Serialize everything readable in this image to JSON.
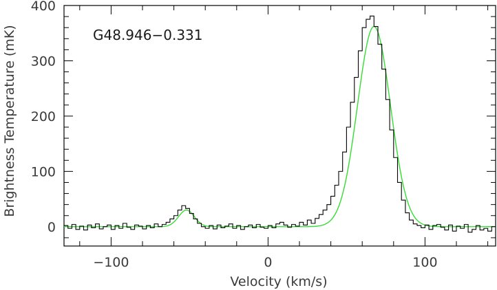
{
  "chart_data": {
    "type": "line",
    "title": "",
    "annotation": "G48.946−0.331",
    "xlabel": "Velocity (km/s)",
    "ylabel": "Brightness Temperature (mK)",
    "xlim": [
      -130,
      145
    ],
    "ylim": [
      -35,
      400
    ],
    "xticks": [
      -100,
      0,
      100
    ],
    "xtick_labels": [
      "−100",
      "0",
      "100"
    ],
    "yticks": [
      0,
      100,
      200,
      300,
      400
    ],
    "ytick_labels": [
      "0",
      "100",
      "200",
      "300",
      "400"
    ],
    "grid": false,
    "legend": "none",
    "series": [
      {
        "role": "observed spectrum",
        "style": "step",
        "color": "#000000",
        "x": [
          -130,
          -127.5,
          -125,
          -122.5,
          -120,
          -117.5,
          -115,
          -112.5,
          -110,
          -107.5,
          -105,
          -102.5,
          -100,
          -97.5,
          -95,
          -92.5,
          -90,
          -87.5,
          -85,
          -82.5,
          -80,
          -77.5,
          -75,
          -72.5,
          -70,
          -67.5,
          -65,
          -62.5,
          -60,
          -57.5,
          -55,
          -52.5,
          -50,
          -47.5,
          -45,
          -42.5,
          -40,
          -37.5,
          -35,
          -32.5,
          -30,
          -27.5,
          -25,
          -22.5,
          -20,
          -17.5,
          -15,
          -12.5,
          -10,
          -7.5,
          -5,
          -2.5,
          0,
          2.5,
          5,
          7.5,
          10,
          12.5,
          15,
          17.5,
          20,
          22.5,
          25,
          27.5,
          30,
          32.5,
          35,
          37.5,
          40,
          42.5,
          45,
          47.5,
          50,
          52.5,
          55,
          57.5,
          60,
          62.5,
          65,
          67.5,
          70,
          72.5,
          75,
          77.5,
          80,
          82.5,
          85,
          87.5,
          90,
          92.5,
          95,
          97.5,
          100,
          102.5,
          105,
          107.5,
          110,
          112.5,
          115,
          117.5,
          120,
          122.5,
          125,
          127.5,
          130,
          132.5,
          135,
          137.5,
          140,
          142.5
        ],
        "y": [
          2,
          -3,
          4,
          -5,
          1,
          -6,
          3,
          -2,
          5,
          -4,
          0,
          3,
          -5,
          2,
          -3,
          6,
          -1,
          -5,
          3,
          1,
          -4,
          2,
          -2,
          5,
          0,
          4,
          8,
          14,
          20,
          30,
          38,
          33,
          24,
          14,
          6,
          0,
          -3,
          2,
          -4,
          3,
          -2,
          1,
          5,
          -3,
          2,
          -5,
          0,
          3,
          -2,
          4,
          -1,
          -3,
          2,
          -2,
          5,
          8,
          3,
          -1,
          4,
          1,
          8,
          3,
          12,
          6,
          15,
          22,
          30,
          40,
          55,
          75,
          100,
          135,
          180,
          225,
          270,
          318,
          360,
          375,
          381,
          362,
          330,
          285,
          230,
          175,
          125,
          80,
          48,
          25,
          12,
          5,
          2,
          -2,
          3,
          -5,
          2,
          4,
          -1,
          -6,
          3,
          -8,
          1,
          -3,
          4,
          -10,
          -5,
          2,
          -6,
          -3,
          -8,
          0
        ]
      },
      {
        "role": "gaussian fit",
        "style": "smooth",
        "color": "#33dd33",
        "components": [
          {
            "amplitude": 30,
            "center": -52,
            "sigma": 5
          },
          {
            "amplitude": 362,
            "center": 67.5,
            "sigma": 10.5
          }
        ]
      }
    ]
  }
}
